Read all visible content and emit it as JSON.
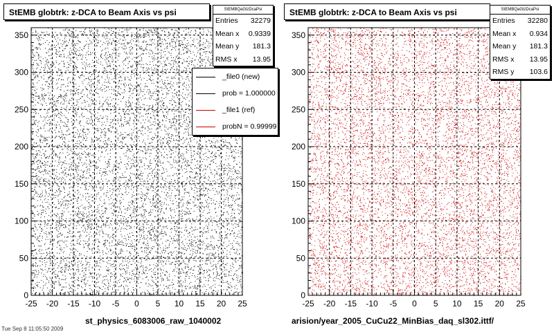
{
  "left_panel": {
    "title": "StEMB globtrk: z-DCA to Beam Axis vs psi",
    "stats": {
      "name": "StEMBQaGlzDcaPsi",
      "rows": [
        {
          "label": "Entries",
          "value": "32279"
        },
        {
          "label": "Mean x",
          "value": "0.9339"
        },
        {
          "label": "Mean y",
          "value": "181.3"
        },
        {
          "label": "RMS x",
          "value": "13.95"
        }
      ]
    },
    "legend": [
      {
        "label": "_file0 (new)",
        "color": "#000000"
      },
      {
        "label": "prob = 1.000000",
        "color": "#000000"
      },
      {
        "label": "_file1 (ref)",
        "color": "#cc0000"
      },
      {
        "label": "probN = 0.99999",
        "color": "#cc0000"
      }
    ],
    "footer": "st_physics_6083006_raw_1040002",
    "corner_note": "Tue Sep  8 11:05:50 2009",
    "marker_color": "#000000"
  },
  "right_panel": {
    "title": "StEMB globtrk: z-DCA to Beam Axis vs psi",
    "stats": {
      "name": "StEMBQaGlzDcaPsi",
      "rows": [
        {
          "label": "Entries",
          "value": "32280"
        },
        {
          "label": "Mean x",
          "value": "0.934"
        },
        {
          "label": "Mean y",
          "value": "181.3"
        },
        {
          "label": "RMS x",
          "value": "13.95"
        },
        {
          "label": "RMS y",
          "value": "103.6"
        }
      ]
    },
    "footer": "arision/year_2005_CuCu22_MinBias_daq_sl302.ittf/",
    "marker_color": "#cc0000"
  },
  "chart_data": [
    {
      "type": "scatter",
      "title": "StEMB globtrk: z-DCA to Beam Axis vs psi",
      "xlim": [
        -25,
        25
      ],
      "ylim": [
        0,
        360
      ],
      "xticks": [
        -25,
        -20,
        -15,
        -10,
        -5,
        0,
        5,
        10,
        15,
        20,
        25
      ],
      "yticks": [
        0,
        50,
        100,
        150,
        200,
        250,
        300,
        350
      ],
      "grid": true,
      "distribution": "uniform 2D scatter of entries over full axis range",
      "entries": 32279,
      "mean_x": 0.9339,
      "mean_y": 181.3,
      "rms_x": 13.95,
      "series": [
        {
          "name": "_file0 (new)",
          "color": "#000000"
        }
      ]
    },
    {
      "type": "scatter",
      "title": "StEMB globtrk: z-DCA to Beam Axis vs psi",
      "xlim": [
        -25,
        25
      ],
      "ylim": [
        0,
        360
      ],
      "xticks": [
        -25,
        -20,
        -15,
        -10,
        -5,
        0,
        5,
        10,
        15,
        20,
        25
      ],
      "yticks": [
        0,
        50,
        100,
        150,
        200,
        250,
        300,
        350
      ],
      "grid": true,
      "distribution": "uniform 2D scatter of entries over full axis range",
      "entries": 32280,
      "mean_x": 0.934,
      "mean_y": 181.3,
      "rms_x": 13.95,
      "rms_y": 103.6,
      "series": [
        {
          "name": "_file1 (ref)",
          "color": "#cc0000"
        }
      ]
    }
  ]
}
